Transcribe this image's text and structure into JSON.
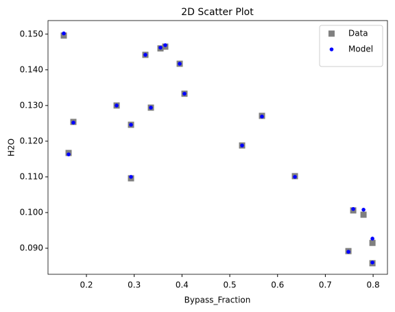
{
  "chart_data": {
    "type": "scatter",
    "title": "2D Scatter Plot",
    "x_label": "Bypass_Fraction",
    "y_label": "H2O",
    "x": [
      0.1526,
      0.1627,
      0.1727,
      0.2632,
      0.2933,
      0.2933,
      0.3234,
      0.3349,
      0.355,
      0.365,
      0.3952,
      0.4052,
      0.5258,
      0.5674,
      0.6363,
      0.7483,
      0.7584,
      0.7799,
      0.7986,
      0.7986
    ],
    "series": [
      {
        "name": "Data",
        "color": "#808080",
        "marker": "square",
        "values": [
          0.1496,
          0.1167,
          0.1254,
          0.13,
          0.1246,
          0.1096,
          0.1442,
          0.1294,
          0.146,
          0.1465,
          0.1417,
          0.1333,
          0.1188,
          0.1271,
          0.1102,
          0.0892,
          0.1006,
          0.0994,
          0.0915,
          0.0858
        ]
      },
      {
        "name": "Model",
        "color": "#0000ff",
        "marker": "circle",
        "values": [
          0.1502,
          0.1163,
          0.1252,
          0.13,
          0.1246,
          0.11,
          0.1442,
          0.1294,
          0.1462,
          0.1469,
          0.1417,
          0.1333,
          0.1188,
          0.1269,
          0.11,
          0.089,
          0.101,
          0.1008,
          0.0927,
          0.086
        ]
      }
    ],
    "xlim": [
      0.1196,
      0.83
    ],
    "ylim": [
      0.0827,
      0.1538
    ],
    "xticks": [
      0.2,
      0.3,
      0.4,
      0.5,
      0.6,
      0.7,
      0.8
    ],
    "yticks": [
      {
        "value": 0.09,
        "label": "0.090"
      },
      {
        "value": 0.1,
        "label": "0.100"
      },
      {
        "value": 0.11,
        "label": "0.110"
      },
      {
        "value": 0.12,
        "label": "0.120"
      },
      {
        "value": 0.13,
        "label": "0.130"
      },
      {
        "value": 0.14,
        "label": "0.140"
      },
      {
        "value": 0.15,
        "label": "0.150"
      }
    ],
    "grid": false,
    "legend": "upper-right"
  }
}
